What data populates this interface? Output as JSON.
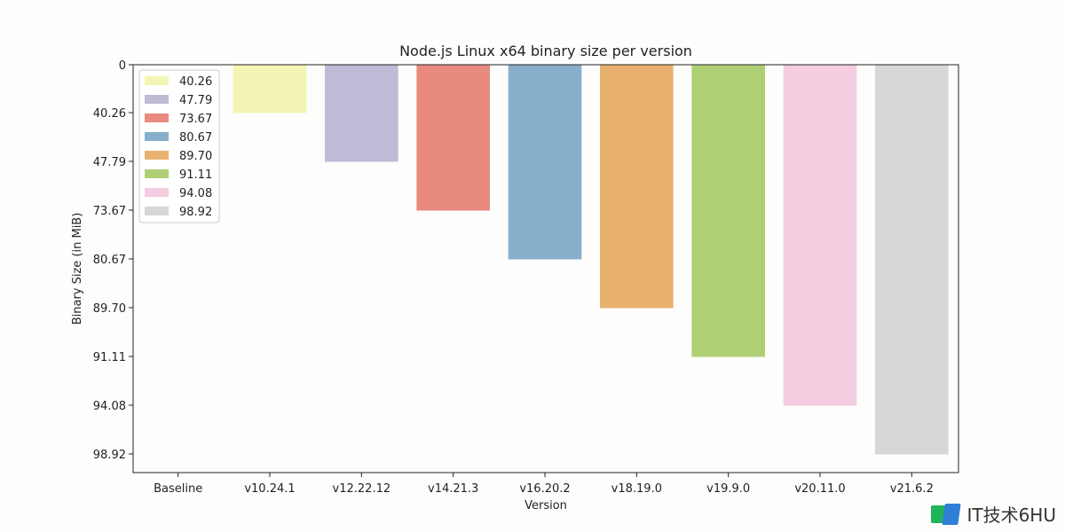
{
  "chart_data": {
    "type": "bar",
    "title": "Node.js Linux x64 binary size per version",
    "xlabel": "Version",
    "ylabel": "Binary Size (in MiB)",
    "categories": [
      "Baseline",
      "v10.24.1",
      "v12.22.12",
      "v14.21.3",
      "v16.20.2",
      "v18.19.0",
      "v19.9.0",
      "v20.11.0",
      "v21.6.2"
    ],
    "values": [
      0,
      40.26,
      47.79,
      73.67,
      80.67,
      89.7,
      91.11,
      94.08,
      98.92
    ],
    "y_tick_labels": [
      "0",
      "40.26",
      "47.79",
      "73.67",
      "80.67",
      "89.70",
      "91.11",
      "94.08",
      "98.92"
    ],
    "y_inverted": true,
    "grid": false,
    "legend": {
      "position": "top-left",
      "entries": [
        "40.26",
        "47.79",
        "73.67",
        "80.67",
        "89.70",
        "91.11",
        "94.08",
        "98.92"
      ]
    },
    "colors": [
      "#f3f5b4",
      "#bebbd6",
      "#e88a7e",
      "#87aecb",
      "#e8b170",
      "#afcf75",
      "#f4cde0",
      "#d7d7d5"
    ]
  },
  "watermark": {
    "text": "IT技术6HU"
  }
}
